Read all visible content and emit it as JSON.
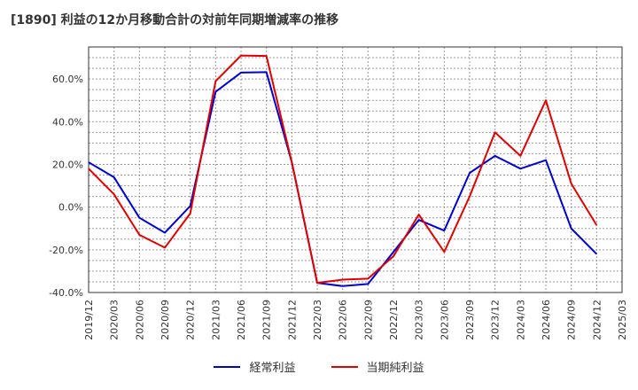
{
  "chart_data": {
    "type": "line",
    "title": "[1890]  利益の12か月移動合計の対前年同期増減率の推移",
    "x": [
      "2019/12",
      "2020/03",
      "2020/06",
      "2020/09",
      "2020/12",
      "2021/03",
      "2021/06",
      "2021/09",
      "2021/12",
      "2022/03",
      "2022/06",
      "2022/09",
      "2022/12",
      "2023/03",
      "2023/06",
      "2023/09",
      "2023/12",
      "2024/03",
      "2024/06",
      "2024/09",
      "2024/12",
      "2025/03"
    ],
    "ylim": [
      -40,
      75
    ],
    "yticks": [
      -40,
      -20,
      0,
      20,
      40,
      60
    ],
    "ytick_labels": [
      "-40.0%",
      "-20.0%",
      "0.0%",
      "20.0%",
      "40.0%",
      "60.0%"
    ],
    "grid": true,
    "series": [
      {
        "name": "経常利益",
        "color": "#0000cc",
        "values": [
          21.0,
          14.0,
          -5.0,
          -12.0,
          0.5,
          54.0,
          63.0,
          63.2,
          21.0,
          -35.5,
          -37.0,
          -36.0,
          -21.0,
          -6.0,
          -11.0,
          16.0,
          24.0,
          18.0,
          22.0,
          -10.0,
          -22.0,
          null
        ]
      },
      {
        "name": "当期純利益",
        "color": "#dd0000",
        "values": [
          18.0,
          6.0,
          -13.0,
          -19.0,
          -3.0,
          59.0,
          71.0,
          70.8,
          21.0,
          -35.5,
          -34.0,
          -33.5,
          -23.0,
          -3.5,
          -21.0,
          5.0,
          35.0,
          24.0,
          50.0,
          11.0,
          -8.5,
          null
        ]
      }
    ],
    "legend_position": "bottom-center"
  }
}
